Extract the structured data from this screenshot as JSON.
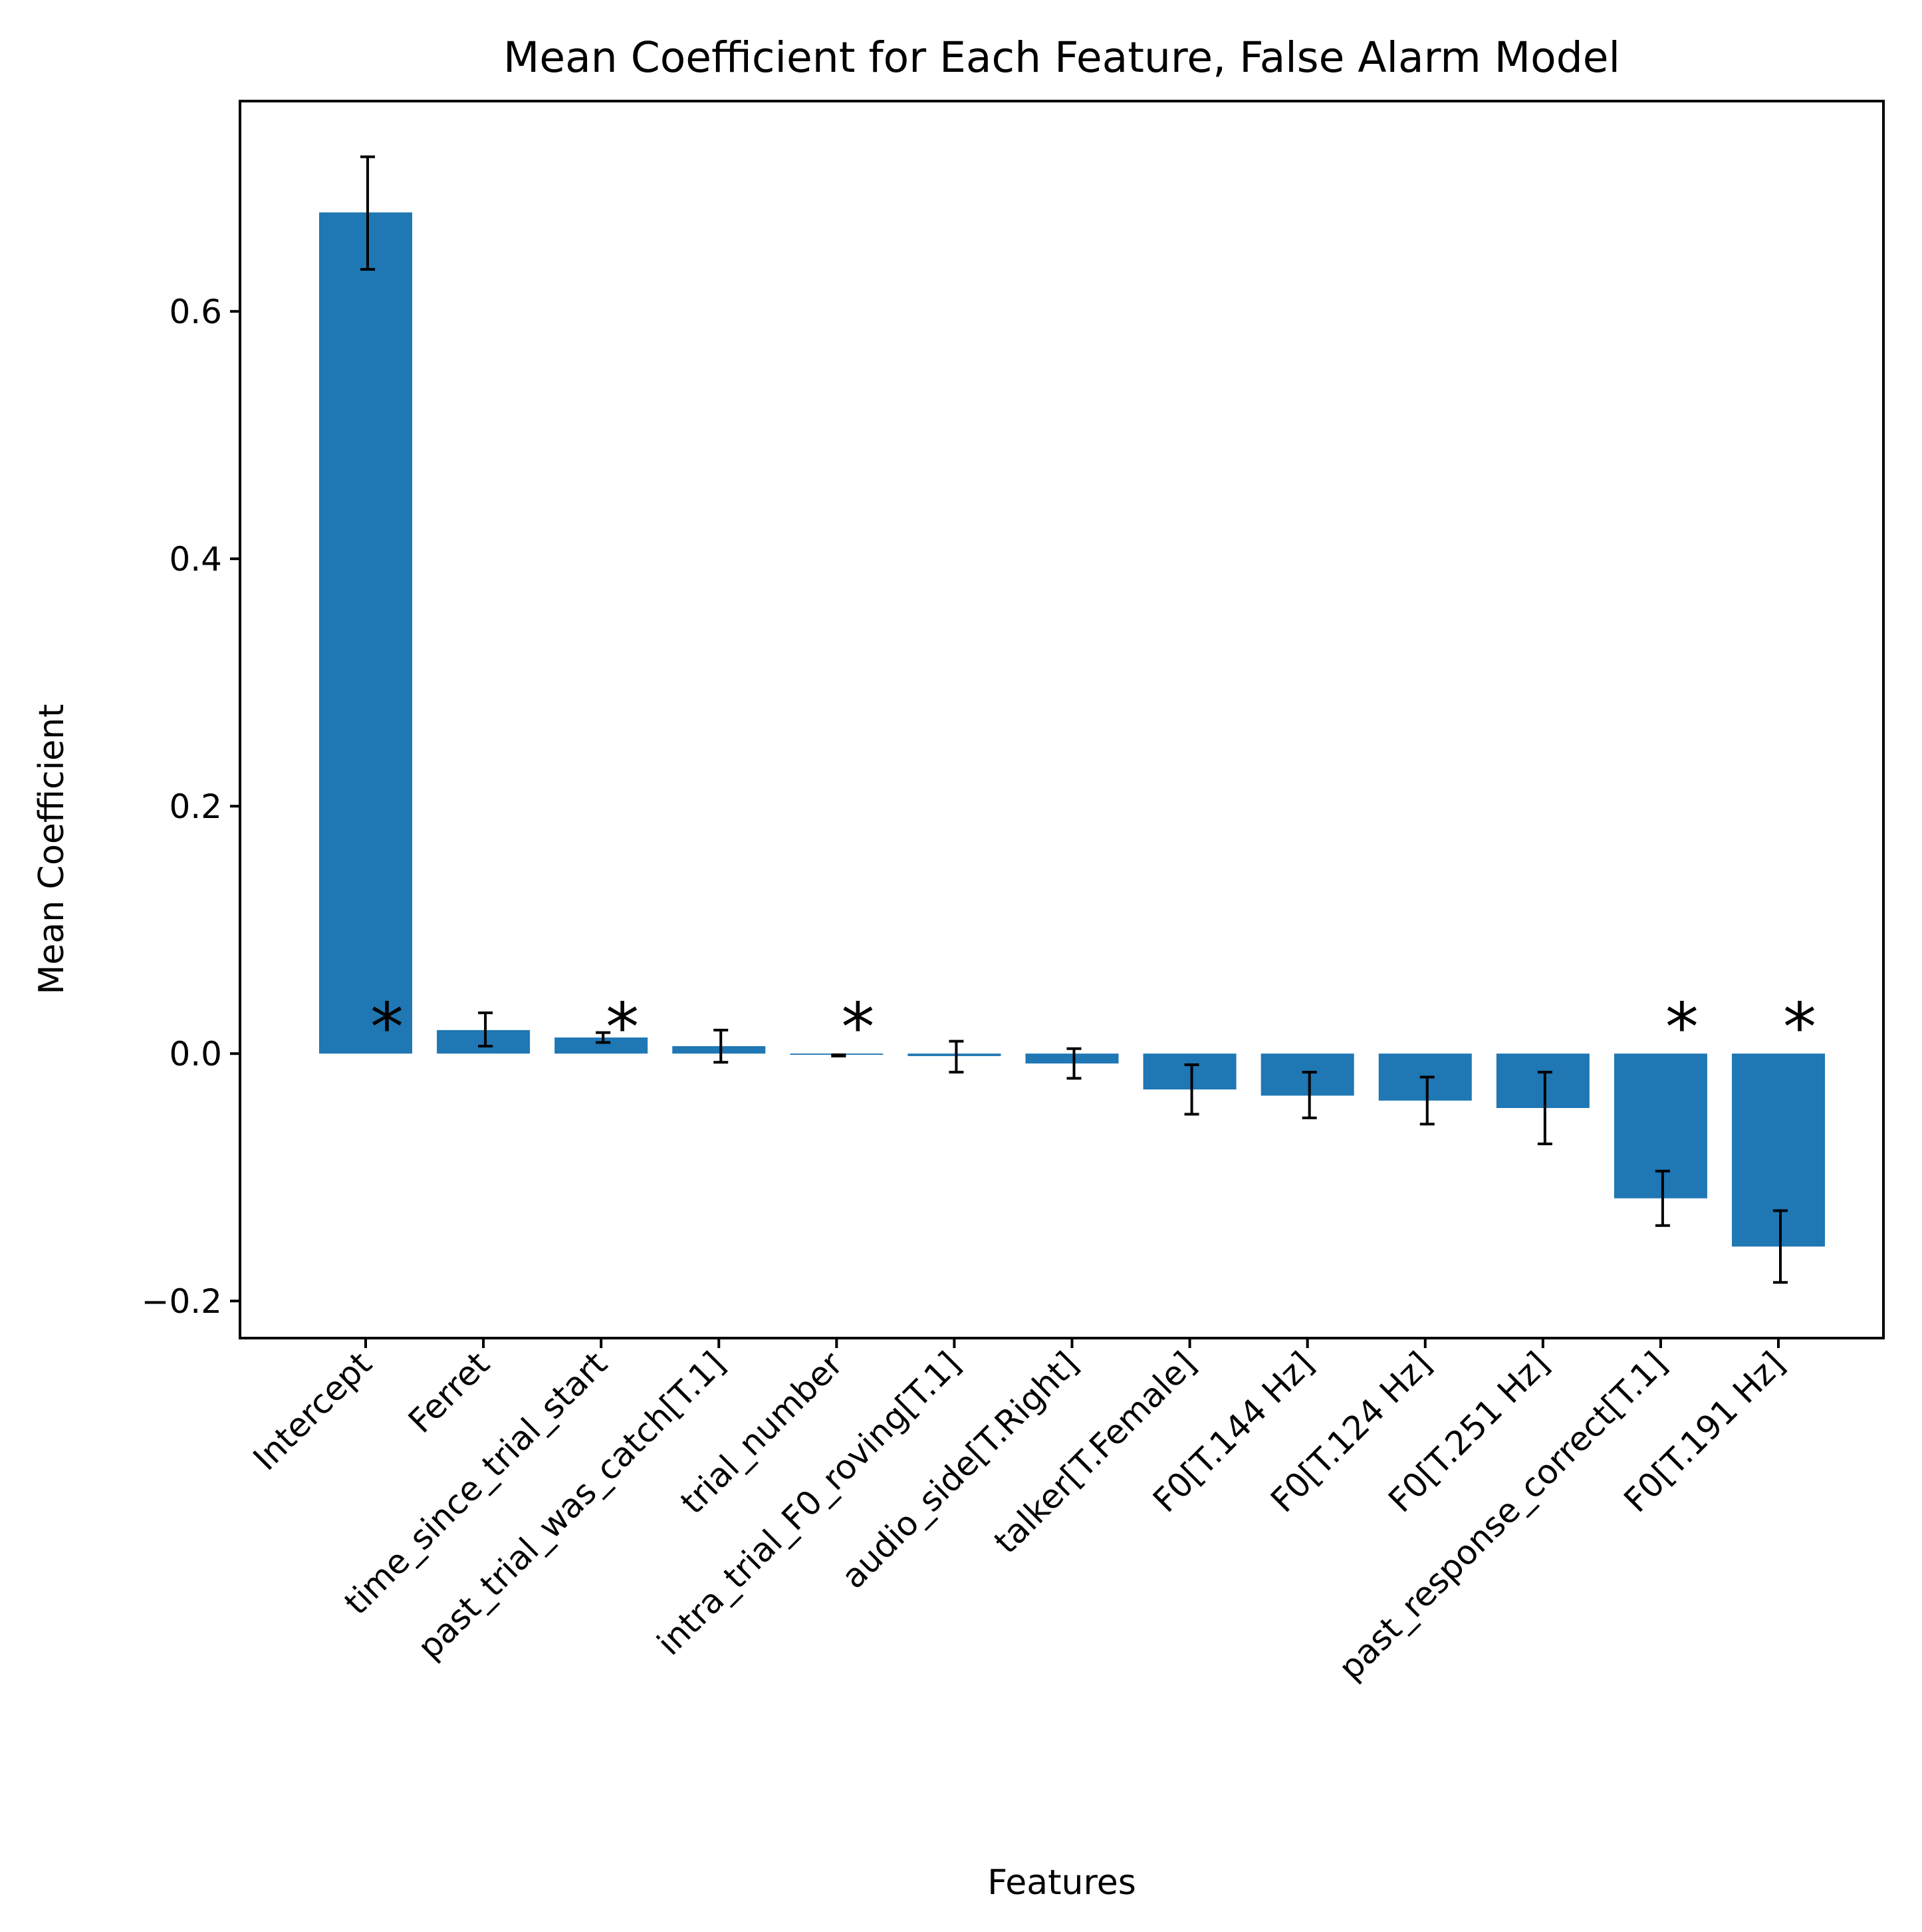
{
  "chart_data": {
    "type": "bar",
    "title": "Mean Coefficient for Each Feature, False Alarm Model",
    "xlabel": "Features",
    "ylabel": "Mean Coefficient",
    "ylim": [
      -0.23,
      0.77
    ],
    "yticks": [
      {
        "value": -0.2,
        "label": "−0.2"
      },
      {
        "value": 0.0,
        "label": "0.0"
      },
      {
        "value": 0.2,
        "label": "0.2"
      },
      {
        "value": 0.4,
        "label": "0.4"
      },
      {
        "value": 0.6,
        "label": "0.6"
      }
    ],
    "grid": false,
    "bar_color": "#1f77b4",
    "error_color": "#000000",
    "significance_marker": "*",
    "categories": [
      "Intercept",
      "Ferret",
      "time_since_trial_start",
      "past_trial_was_catch[T.1]",
      "trial_number",
      "intra_trial_F0_roving[T.1]",
      "audio_side[T.Right]",
      "talker[T.Female]",
      "F0[T.144 Hz]",
      "F0[T.124 Hz]",
      "F0[T.251 Hz]",
      "past_response_correct[T.1]",
      "F0[T.191 Hz]"
    ],
    "values": [
      0.68,
      0.019,
      0.013,
      0.006,
      -0.001,
      -0.002,
      -0.008,
      -0.029,
      -0.034,
      -0.038,
      -0.044,
      -0.117,
      -0.156
    ],
    "error_low": [
      0.634,
      0.006,
      0.009,
      -0.007,
      -0.002,
      -0.015,
      -0.02,
      -0.049,
      -0.052,
      -0.057,
      -0.073,
      -0.139,
      -0.185
    ],
    "error_high": [
      0.725,
      0.033,
      0.017,
      0.019,
      -0.001,
      0.01,
      0.004,
      -0.009,
      -0.015,
      -0.019,
      -0.015,
      -0.095,
      -0.127
    ],
    "significant": [
      true,
      false,
      true,
      false,
      true,
      false,
      false,
      false,
      false,
      false,
      false,
      true,
      true
    ]
  }
}
